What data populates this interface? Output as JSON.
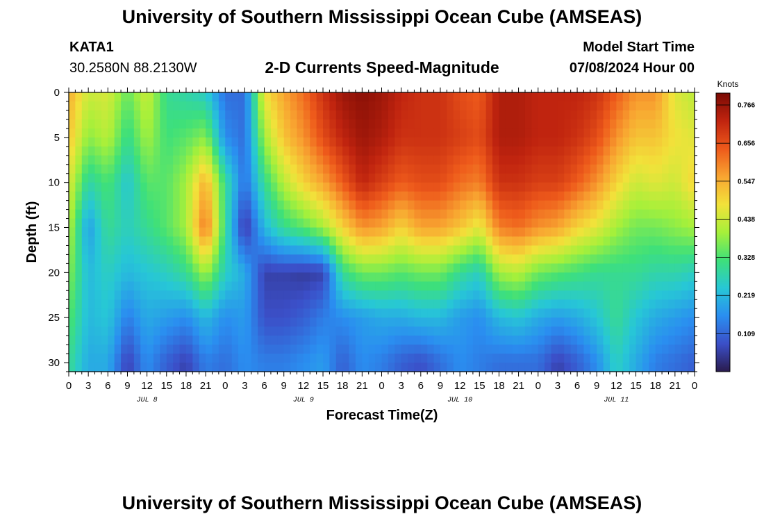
{
  "header": {
    "title": "University of Southern Mississippi Ocean Cube (AMSEAS)",
    "station": "KATA1",
    "coordinates": "30.2580N  88.2130W",
    "subtitle": "2-D Currents Speed-Magnitude",
    "model_start_label": "Model Start Time",
    "model_start_value": "07/08/2024 Hour 00"
  },
  "footer": {
    "title": "University of Southern Mississippi Ocean Cube (AMSEAS)"
  },
  "chart_data": {
    "type": "heatmap",
    "title": "2-D Currents Speed-Magnitude",
    "xlabel": "Forecast Time(Z)",
    "ylabel": "Depth (ft)",
    "x_ticks": [
      "0",
      "3",
      "6",
      "9",
      "12",
      "15",
      "18",
      "21",
      "0",
      "3",
      "6",
      "9",
      "12",
      "15",
      "18",
      "21",
      "0",
      "3",
      "6",
      "9",
      "12",
      "15",
      "18",
      "21",
      "0",
      "3",
      "6",
      "9",
      "12",
      "15",
      "18",
      "21",
      "0"
    ],
    "x_hours_range": [
      0,
      96
    ],
    "day_labels": [
      {
        "label": "JUL 8",
        "hour": 12
      },
      {
        "label": "JUL 9",
        "hour": 36
      },
      {
        "label": "JUL 10",
        "hour": 60
      },
      {
        "label": "JUL 11",
        "hour": 84
      }
    ],
    "y_ticks": [
      0,
      5,
      10,
      15,
      20,
      25,
      30
    ],
    "ylim": [
      0,
      31
    ],
    "colorbar": {
      "unit": "Knots",
      "range": [
        0.0,
        0.8
      ],
      "ticks": [
        "0.766",
        "0.656",
        "0.547",
        "0.438",
        "0.328",
        "0.219",
        "0.109"
      ],
      "colors": [
        "#2a1b4d",
        "#3b4fc8",
        "#2a8ef0",
        "#27c7d6",
        "#3ee07a",
        "#a6f03a",
        "#f2e23a",
        "#f8a531",
        "#ee5a1b",
        "#c0240f",
        "#7a0a04"
      ]
    },
    "depth_profiles": [
      {
        "hour": 0,
        "speeds": [
          0.55,
          0.52,
          0.46,
          0.42,
          0.38,
          0.34,
          0.3
        ]
      },
      {
        "hour": 3,
        "speeds": [
          0.44,
          0.38,
          0.28,
          0.18,
          0.22,
          0.22,
          0.2
        ]
      },
      {
        "hour": 6,
        "speeds": [
          0.45,
          0.42,
          0.33,
          0.3,
          0.26,
          0.24,
          0.2
        ]
      },
      {
        "hour": 9,
        "speeds": [
          0.35,
          0.3,
          0.24,
          0.26,
          0.22,
          0.14,
          0.06
        ]
      },
      {
        "hour": 12,
        "speeds": [
          0.44,
          0.4,
          0.34,
          0.3,
          0.24,
          0.2,
          0.16
        ]
      },
      {
        "hour": 15,
        "speeds": [
          0.3,
          0.32,
          0.34,
          0.34,
          0.26,
          0.18,
          0.1
        ]
      },
      {
        "hour": 18,
        "speeds": [
          0.28,
          0.34,
          0.4,
          0.4,
          0.3,
          0.16,
          0.06
        ]
      },
      {
        "hour": 21,
        "speeds": [
          0.25,
          0.38,
          0.55,
          0.62,
          0.4,
          0.22,
          0.14
        ]
      },
      {
        "hour": 24,
        "speeds": [
          0.12,
          0.16,
          0.3,
          0.3,
          0.26,
          0.16,
          0.12
        ]
      },
      {
        "hour": 27,
        "speeds": [
          0.12,
          0.12,
          0.12,
          0.04,
          0.2,
          0.18,
          0.16
        ]
      },
      {
        "hour": 30,
        "speeds": [
          0.48,
          0.4,
          0.3,
          0.22,
          0.06,
          0.08,
          0.14
        ]
      },
      {
        "hour": 33,
        "speeds": [
          0.56,
          0.52,
          0.42,
          0.3,
          0.06,
          0.08,
          0.14
        ]
      },
      {
        "hour": 36,
        "speeds": [
          0.62,
          0.58,
          0.5,
          0.34,
          0.05,
          0.1,
          0.16
        ]
      },
      {
        "hour": 39,
        "speeds": [
          0.7,
          0.66,
          0.56,
          0.4,
          0.06,
          0.14,
          0.18
        ]
      },
      {
        "hour": 42,
        "speeds": [
          0.76,
          0.72,
          0.64,
          0.5,
          0.3,
          0.16,
          0.1
        ]
      },
      {
        "hour": 45,
        "speeds": [
          0.78,
          0.76,
          0.72,
          0.58,
          0.36,
          0.18,
          0.16
        ]
      },
      {
        "hour": 48,
        "speeds": [
          0.76,
          0.74,
          0.68,
          0.56,
          0.36,
          0.2,
          0.14
        ]
      },
      {
        "hour": 51,
        "speeds": [
          0.72,
          0.7,
          0.64,
          0.5,
          0.34,
          0.2,
          0.1
        ]
      },
      {
        "hour": 54,
        "speeds": [
          0.7,
          0.7,
          0.66,
          0.56,
          0.36,
          0.22,
          0.08
        ]
      },
      {
        "hour": 57,
        "speeds": [
          0.7,
          0.7,
          0.66,
          0.56,
          0.36,
          0.22,
          0.12
        ]
      },
      {
        "hour": 60,
        "speeds": [
          0.66,
          0.68,
          0.62,
          0.52,
          0.3,
          0.18,
          0.16
        ]
      },
      {
        "hour": 63,
        "speeds": [
          0.64,
          0.66,
          0.6,
          0.46,
          0.26,
          0.16,
          0.14
        ]
      },
      {
        "hour": 66,
        "speeds": [
          0.74,
          0.74,
          0.7,
          0.6,
          0.4,
          0.22,
          0.12
        ]
      },
      {
        "hour": 69,
        "speeds": [
          0.74,
          0.74,
          0.7,
          0.62,
          0.42,
          0.24,
          0.12
        ]
      },
      {
        "hour": 72,
        "speeds": [
          0.72,
          0.72,
          0.68,
          0.58,
          0.36,
          0.2,
          0.12
        ]
      },
      {
        "hour": 75,
        "speeds": [
          0.72,
          0.72,
          0.68,
          0.56,
          0.34,
          0.18,
          0.06
        ]
      },
      {
        "hour": 78,
        "speeds": [
          0.72,
          0.7,
          0.64,
          0.5,
          0.32,
          0.2,
          0.1
        ]
      },
      {
        "hour": 81,
        "speeds": [
          0.7,
          0.66,
          0.58,
          0.46,
          0.3,
          0.24,
          0.16
        ]
      },
      {
        "hour": 84,
        "speeds": [
          0.64,
          0.58,
          0.5,
          0.4,
          0.3,
          0.3,
          0.26
        ]
      },
      {
        "hour": 87,
        "speeds": [
          0.58,
          0.52,
          0.44,
          0.36,
          0.3,
          0.24,
          0.2
        ]
      },
      {
        "hour": 90,
        "speeds": [
          0.58,
          0.52,
          0.46,
          0.36,
          0.28,
          0.2,
          0.14
        ]
      },
      {
        "hour": 93,
        "speeds": [
          0.46,
          0.48,
          0.44,
          0.38,
          0.28,
          0.18,
          0.12
        ]
      },
      {
        "hour": 96,
        "speeds": [
          0.42,
          0.46,
          0.5,
          0.4,
          0.26,
          0.16,
          0.1
        ]
      }
    ]
  }
}
